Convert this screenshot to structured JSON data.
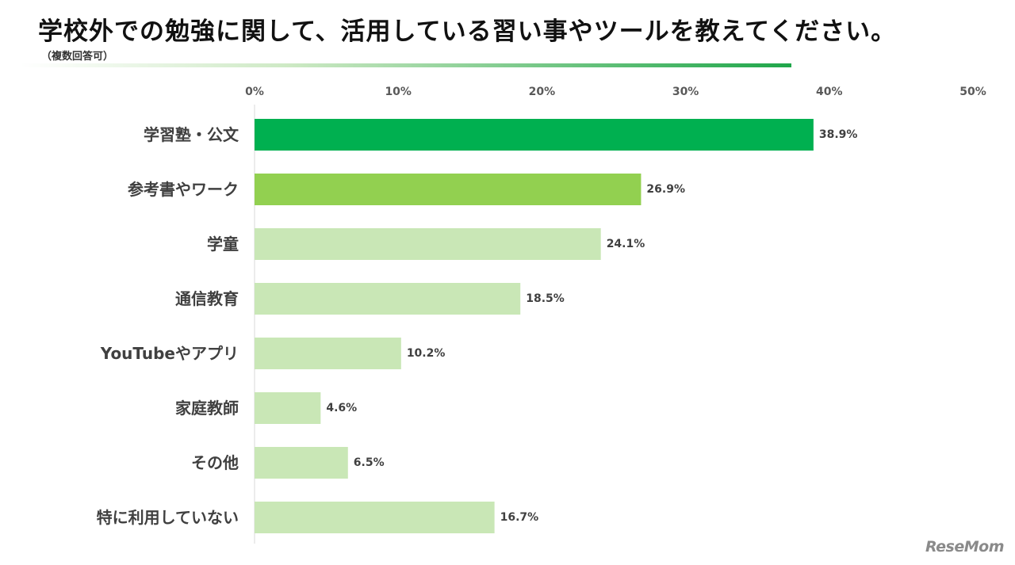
{
  "header": {
    "title": "学校外での勉強に関して、活用している習い事やツールを教えてください。",
    "subtitle": "（複数回答可）"
  },
  "brand": {
    "logo_text": "ReseMom"
  },
  "chart_data": {
    "type": "bar",
    "orientation": "horizontal",
    "title": "学校外での勉強に関して、活用している習い事やツールを教えてください。",
    "subtitle": "（複数回答可）",
    "categories": [
      "学習塾・公文",
      "参考書やワーク",
      "学童",
      "通信教育",
      "YouTubeやアプリ",
      "家庭教師",
      "その他",
      "特に利用していない"
    ],
    "values": [
      38.9,
      26.9,
      24.1,
      18.5,
      10.2,
      4.6,
      6.5,
      16.7
    ],
    "value_labels": [
      "38.9%",
      "26.9%",
      "24.1%",
      "18.5%",
      "10.2%",
      "4.6%",
      "6.5%",
      "16.7%"
    ],
    "bar_colors": [
      "#00b050",
      "#92d050",
      "#c9e7b6",
      "#c9e7b6",
      "#c9e7b6",
      "#c9e7b6",
      "#c9e7b6",
      "#c9e7b6"
    ],
    "xlim": [
      0,
      50
    ],
    "x_ticks": [
      0,
      10,
      20,
      30,
      40,
      50
    ],
    "x_tick_labels": [
      "0%",
      "10%",
      "20%",
      "30%",
      "40%",
      "50%"
    ],
    "xlabel": "",
    "ylabel": "",
    "grid": false,
    "legend": "none"
  }
}
